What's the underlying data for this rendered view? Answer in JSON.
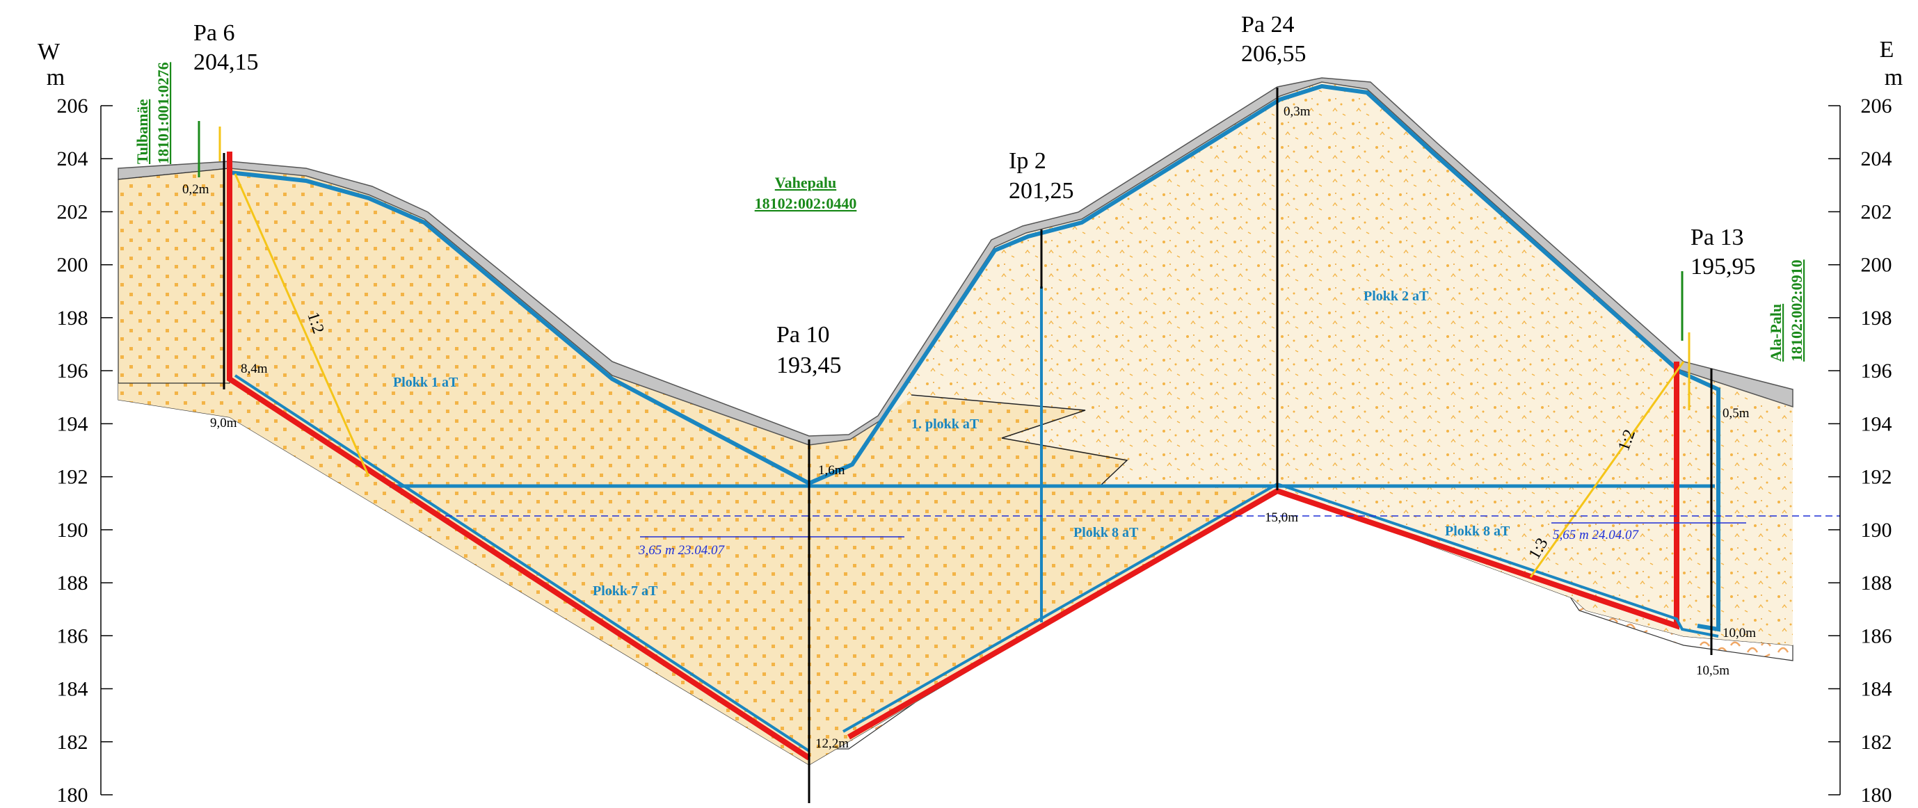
{
  "axes": {
    "left": {
      "dir": "W",
      "unit": "m"
    },
    "right": {
      "dir": "E",
      "unit": "m"
    },
    "ticks": [
      "206",
      "204",
      "202",
      "200",
      "198",
      "196",
      "194",
      "192",
      "190",
      "188",
      "186",
      "184",
      "182",
      "180"
    ],
    "y_range": [
      180,
      206
    ]
  },
  "boreholes": [
    {
      "id": "pa6",
      "name": "Pa 6",
      "elev": "204,15",
      "depths": [
        "0,2m",
        "8,4m",
        "9,0m"
      ]
    },
    {
      "id": "pa10",
      "name": "Pa 10",
      "elev": "193,45",
      "depths": [
        "1,6m",
        "12,2m"
      ]
    },
    {
      "id": "ip2",
      "name": "Ip 2",
      "elev": "201,25",
      "depths": []
    },
    {
      "id": "pa24",
      "name": "Pa 24",
      "elev": "206,55",
      "depths": [
        "0,3m",
        "15,0m"
      ]
    },
    {
      "id": "pa13",
      "name": "Pa 13",
      "elev": "195,95",
      "depths": [
        "0,5m",
        "10,0m",
        "10,5m"
      ]
    }
  ],
  "blocks": [
    "Plokk 1 aT",
    "1. plokk aT",
    "Plokk 2 aT",
    "Plokk 7 aT",
    "Plokk 8 aT",
    "Plokk 8 aT"
  ],
  "groundwater": [
    "3,65 m 23.04.07",
    "5,65 m 24.04.07"
  ],
  "slopes": [
    "1:2",
    "1:2",
    "1:3"
  ],
  "parcels": [
    {
      "name": "Tulbamäe",
      "code": "18101:001:0276"
    },
    {
      "name": "Vahepalu",
      "code": "18102:002:0440"
    },
    {
      "name": "Ala-Palu",
      "code": "18102:002:0910"
    }
  ],
  "colors": {
    "fill": "#f9e6bd",
    "fill_dots": "#f3b447",
    "topsoil": "#c4c4c4",
    "bedrock": "#f0a765",
    "block_line": "#1a86c0",
    "liner": "#e81919",
    "slope_line": "#f5c518",
    "gw_line": "#1f2fd6",
    "parcel": "#1a8a1a"
  }
}
